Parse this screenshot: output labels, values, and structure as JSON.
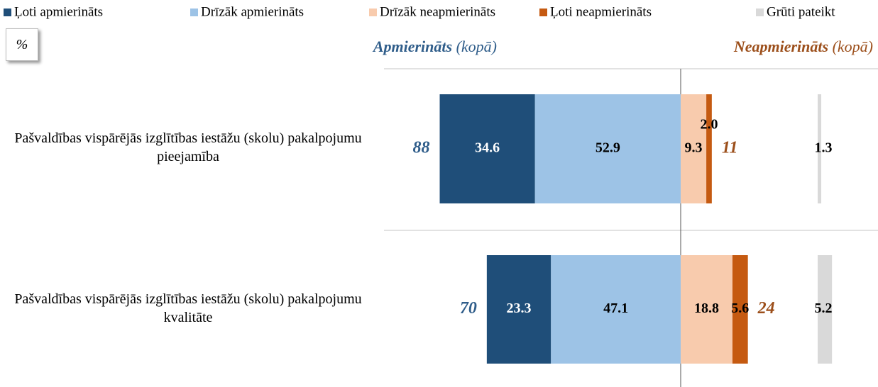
{
  "chart_data": {
    "type": "diverging-bar",
    "unit": "%",
    "categories": [
      "Pašvaldības vispārējās izglītības iestāžu (skolu) pakalpojumu pieejamība",
      "Pašvaldības vispārējās izglītības iestāžu (skolu) pakalpojumu kvalitāte"
    ],
    "series": [
      {
        "name": "Ļoti apmierināts",
        "color": "#1f4e79",
        "side": "left",
        "values": [
          34.6,
          23.3
        ]
      },
      {
        "name": "Drīzāk apmierināts",
        "color": "#9dc3e6",
        "side": "left",
        "values": [
          52.9,
          47.1
        ]
      },
      {
        "name": "Drīzāk neapmierināts",
        "color": "#f8cbad",
        "side": "right",
        "values": [
          9.3,
          18.8
        ]
      },
      {
        "name": "Ļoti neapmierināts",
        "color": "#c55a11",
        "side": "right",
        "values": [
          2.0,
          5.6
        ],
        "value_labels": [
          "2.0",
          "5.6"
        ]
      },
      {
        "name": "Grūti pateikt",
        "color": "#d9d9d9",
        "side": "apart",
        "values": [
          1.3,
          5.2
        ]
      }
    ],
    "totals": [
      {
        "name": "Apmierināts",
        "qualifier": "(kopā)",
        "color": "#2f5d8a",
        "side": "left",
        "values": [
          88,
          70
        ]
      },
      {
        "name": "Neapmierināts",
        "qualifier": "(kopā)",
        "color": "#9c4f1b",
        "side": "right",
        "values": [
          11,
          24
        ]
      }
    ]
  }
}
